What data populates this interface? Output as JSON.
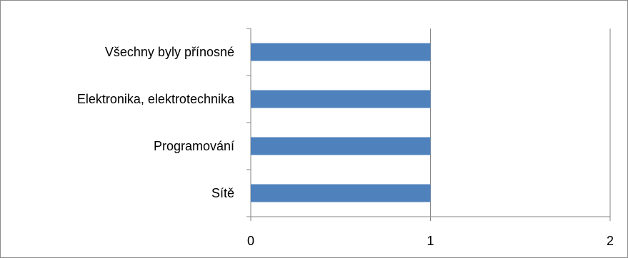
{
  "chart_data": {
    "type": "bar",
    "orientation": "horizontal",
    "categories": [
      "Všechny byly přínosné",
      "Elektronika, elektrotechnika",
      "Programování",
      "Sítě"
    ],
    "values": [
      1,
      1,
      1,
      1
    ],
    "xlim": [
      0,
      2
    ],
    "xticks": [
      "0",
      "1",
      "2"
    ],
    "grid": true,
    "bar_color": "#4f81bd"
  }
}
